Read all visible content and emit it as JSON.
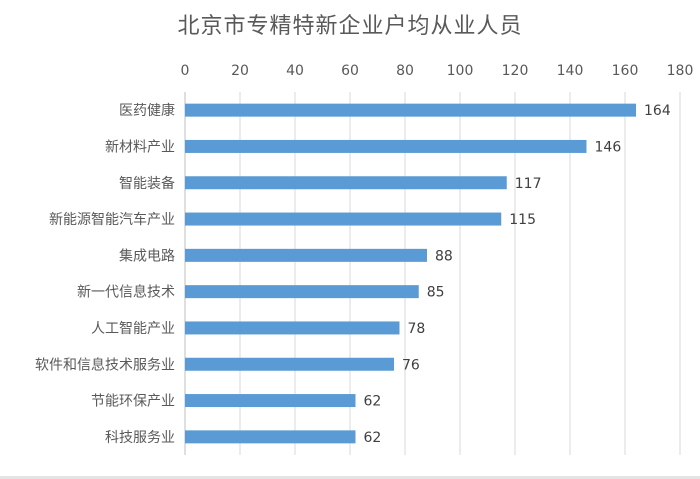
{
  "chart_data": {
    "type": "bar",
    "orientation": "horizontal",
    "title": "北京市专精特新企业户均从业人员",
    "xlabel": "",
    "ylabel": "",
    "xlim": [
      0,
      180
    ],
    "x_ticks": [
      0,
      20,
      40,
      60,
      80,
      100,
      120,
      140,
      160,
      180
    ],
    "x_axis_position": "top",
    "grid": true,
    "categories": [
      "医药健康",
      "新材料产业",
      "智能装备",
      "新能源智能汽车产业",
      "集成电路",
      "新一代信息技术",
      "人工智能产业",
      "软件和信息技术服务业",
      "节能环保产业",
      "科技服务业"
    ],
    "values": [
      164,
      146,
      117,
      115,
      88,
      85,
      78,
      76,
      62,
      62
    ],
    "data_labels": [
      "164",
      "146",
      "117",
      "115",
      "88",
      "85",
      "78",
      "76",
      "62",
      "62"
    ],
    "bar_color": "#5B9BD5",
    "grid_color": "#d9d9d9",
    "text_color": "#595959"
  }
}
